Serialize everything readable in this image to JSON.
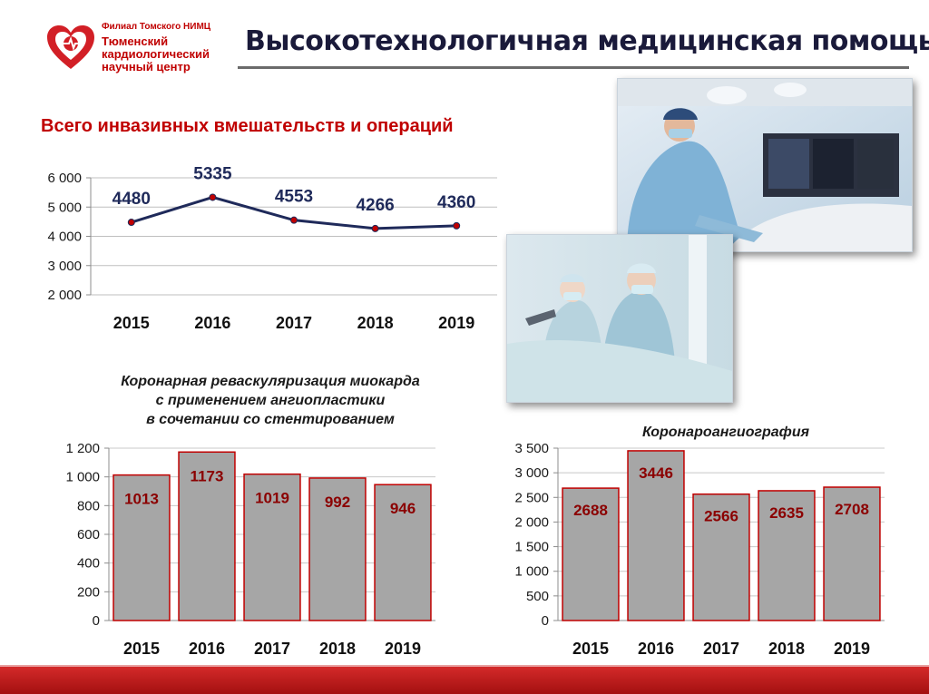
{
  "header": {
    "logo_subtitle": "Филиал Томского НИМЦ",
    "logo_name_lines": [
      "Тюменский",
      "кардиологический",
      "научный центр"
    ],
    "title": "Высокотехнологичная медицинская помощь"
  },
  "colors": {
    "brand_red": "#c00000",
    "line_color": "#1f2a5a",
    "bar_fill": "#a6a6a6",
    "bar_border": "#c00000"
  },
  "chart_data": [
    {
      "type": "line",
      "title": "Всего инвазивных вмешательств и операций",
      "x": [
        "2015",
        "2016",
        "2017",
        "2018",
        "2019"
      ],
      "values": [
        4480,
        5335,
        4553,
        4266,
        4360
      ],
      "data_labels": [
        "4480",
        "5335",
        "4553",
        "4266",
        "4360"
      ],
      "ylim": [
        2000,
        6000
      ],
      "yticks": [
        "2 000",
        "3 000",
        "4 000",
        "5 000",
        "6 000"
      ],
      "grid": true
    },
    {
      "type": "bar",
      "title_lines": [
        "Коронарная реваскуляризация миокарда",
        "с применением ангиопластики",
        "в сочетании со стентированием"
      ],
      "categories": [
        "2015",
        "2016",
        "2017",
        "2018",
        "2019"
      ],
      "values": [
        1013,
        1173,
        1019,
        992,
        946
      ],
      "data_labels": [
        "1013",
        "1173",
        "1019",
        "992",
        "946"
      ],
      "ylim": [
        0,
        1200
      ],
      "yticks": [
        "0",
        "200",
        "400",
        "600",
        "800",
        "1 000",
        "1 200"
      ],
      "grid": true
    },
    {
      "type": "bar",
      "title": "Коронароангиография",
      "categories": [
        "2015",
        "2016",
        "2017",
        "2018",
        "2019"
      ],
      "values": [
        2688,
        3446,
        2566,
        2635,
        2708
      ],
      "data_labels": [
        "2688",
        "3446",
        "2566",
        "2635",
        "2708"
      ],
      "ylim": [
        0,
        3500
      ],
      "yticks": [
        "0",
        "500",
        "1 000",
        "1 500",
        "2 000",
        "2 500",
        "3 000",
        "3 500"
      ],
      "grid": true
    }
  ]
}
